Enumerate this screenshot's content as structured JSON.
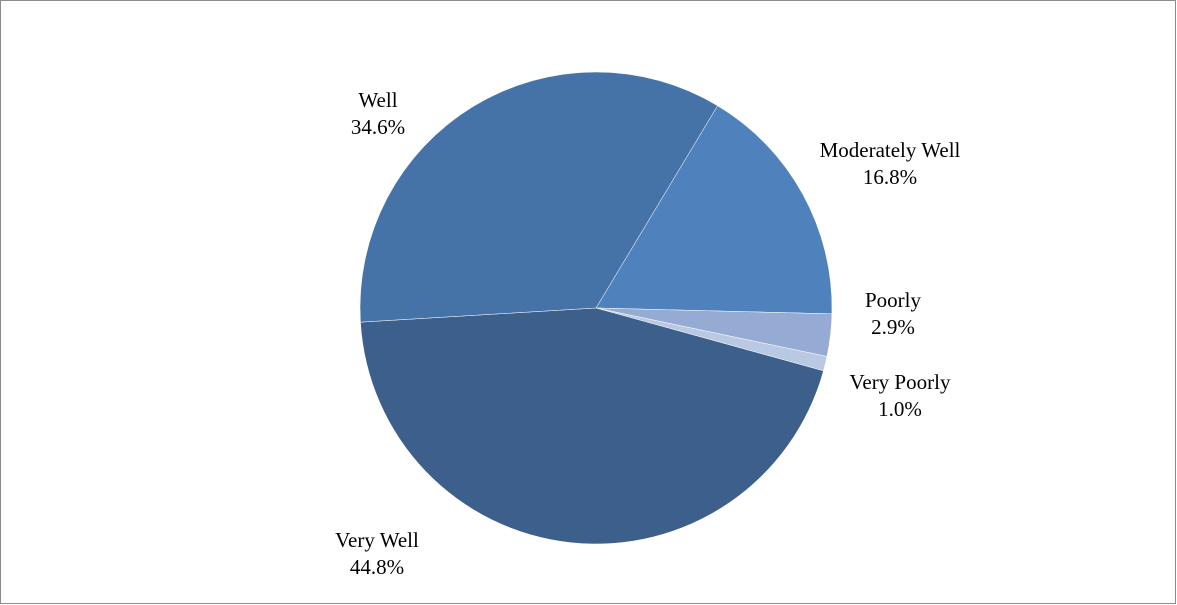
{
  "chart_data": {
    "type": "pie",
    "categories": [
      "Moderately Well",
      "Poorly",
      "Very Poorly",
      "Very Well",
      "Well"
    ],
    "values": [
      16.8,
      2.9,
      1.0,
      44.8,
      34.6
    ],
    "value_labels": [
      "16.8%",
      "2.9%",
      "1.0%",
      "44.8%",
      "34.6%"
    ],
    "colors": [
      "#4f81bd",
      "#95abd3",
      "#b9c9e3",
      "#3c5f8c",
      "#4573a7"
    ]
  }
}
